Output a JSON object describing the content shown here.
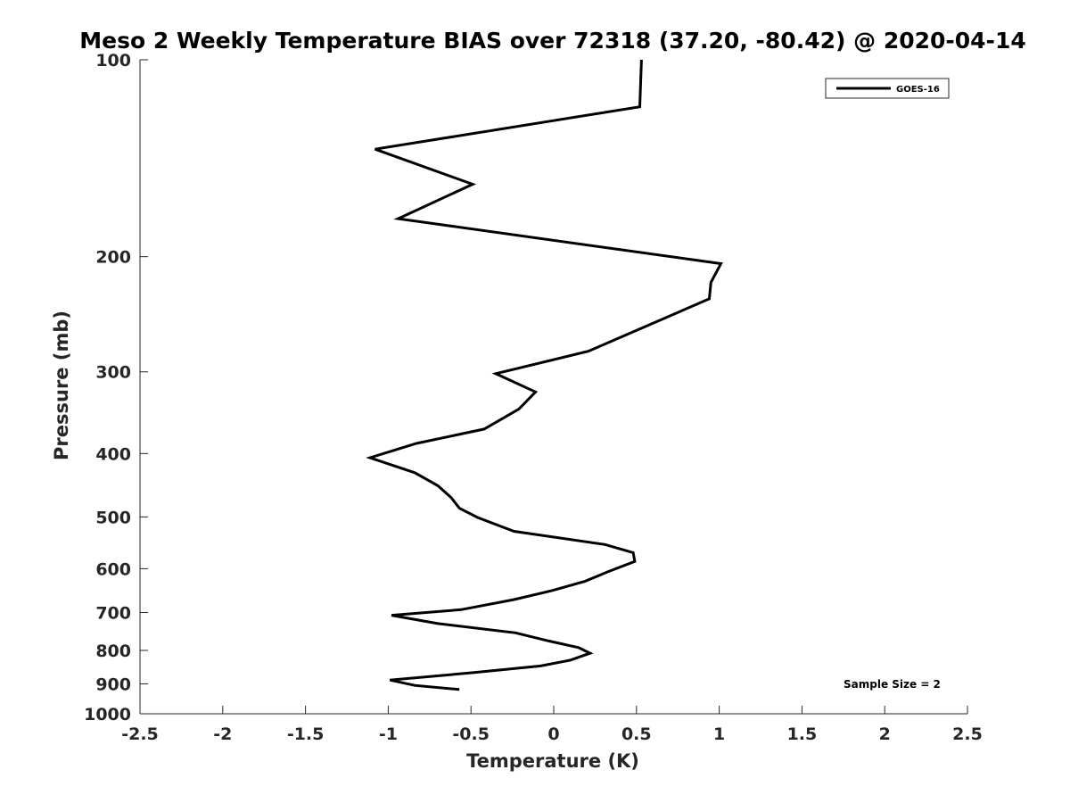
{
  "chart_data": {
    "type": "line",
    "title": "Meso 2 Weekly Temperature BIAS over 72318 (37.20, -80.42) @ 2020-04-14",
    "xlabel": "Temperature (K)",
    "ylabel": "Pressure (mb)",
    "xlim": [
      -2.5,
      2.5
    ],
    "ylim": [
      100,
      1000
    ],
    "y_scale": "log",
    "y_reversed": true,
    "x_ticks": [
      -2.5,
      -2,
      -1.5,
      -1,
      -0.5,
      0,
      0.5,
      1,
      1.5,
      2,
      2.5
    ],
    "x_tick_labels": [
      "-2.5",
      "-2",
      "-1.5",
      "-1",
      "-0.5",
      "0",
      "0.5",
      "1",
      "1.5",
      "2",
      "2.5"
    ],
    "y_ticks": [
      100,
      200,
      300,
      400,
      500,
      600,
      700,
      800,
      900,
      1000
    ],
    "y_tick_labels": [
      "100",
      "200",
      "300",
      "400",
      "500",
      "600",
      "700",
      "800",
      "900",
      "1000"
    ],
    "grid": false,
    "legend": {
      "placement": "top-right",
      "entries": [
        "GOES-16"
      ]
    },
    "annotation": "Sample Size = 2",
    "series": [
      {
        "name": "GOES-16",
        "color": "#000000",
        "x": [
          0.53,
          0.52,
          -1.08,
          -0.49,
          -0.94,
          1.01,
          0.95,
          0.94,
          0.21,
          -0.35,
          -0.11,
          -0.21,
          -0.42,
          -0.83,
          -1.11,
          -0.84,
          -0.7,
          -0.62,
          -0.57,
          -0.46,
          -0.24,
          0.31,
          0.48,
          0.49,
          0.33,
          0.19,
          -0.01,
          -0.24,
          -0.56,
          -0.98,
          -0.7,
          -0.23,
          -0.03,
          0.15,
          0.22,
          0.1,
          -0.08,
          -0.48,
          -0.99,
          -0.84,
          -0.57
        ],
        "y": [
          100,
          118,
          137,
          155,
          175,
          205,
          219,
          232,
          279,
          302,
          322,
          342,
          367,
          386,
          406,
          428,
          448,
          467,
          485,
          501,
          526,
          551,
          567,
          585,
          606,
          627,
          648,
          669,
          693,
          707,
          728,
          752,
          774,
          792,
          808,
          828,
          845,
          865,
          888,
          905,
          918
        ]
      }
    ]
  }
}
